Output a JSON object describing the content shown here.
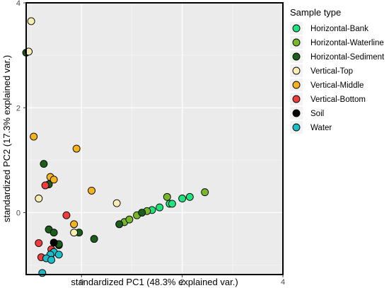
{
  "chart_data": {
    "type": "scatter",
    "title": "",
    "xlabel": "standardized PC1 (48.3% explained var.)",
    "ylabel": "standardized PC2 (17.3% explained var.)",
    "xlim": [
      -1.1,
      4.0
    ],
    "ylim": [
      -1.18,
      4.0
    ],
    "xticks": [
      "0",
      "2",
      "4"
    ],
    "yticks": [
      "0",
      "2",
      "4"
    ],
    "grid": true,
    "legend": {
      "title": "Sample type",
      "placement": "right"
    },
    "series": [
      {
        "name": "Horizontal-Bank",
        "color": "#1fe37f",
        "points": [
          [
            1.4,
            0.05
          ],
          [
            1.55,
            0.1
          ],
          [
            1.75,
            0.17
          ],
          [
            1.8,
            0.17
          ],
          [
            2.0,
            0.27
          ],
          [
            2.15,
            0.3
          ]
        ]
      },
      {
        "name": "Horizontal-Waterline",
        "color": "#77b82a",
        "points": [
          [
            0.85,
            -0.18
          ],
          [
            0.95,
            -0.13
          ],
          [
            1.1,
            -0.05
          ],
          [
            1.3,
            0.03
          ],
          [
            1.7,
            0.3
          ],
          [
            2.45,
            0.39
          ]
        ]
      },
      {
        "name": "Horizontal-Sediment",
        "color": "#1b5e1b",
        "points": [
          [
            -1.1,
            3.05
          ],
          [
            -0.75,
            0.93
          ],
          [
            -0.65,
            0.54
          ],
          [
            -0.65,
            -0.32
          ],
          [
            -0.55,
            -0.38
          ],
          [
            -0.45,
            -0.62
          ],
          [
            0.25,
            -0.5
          ],
          [
            0.75,
            -0.22
          ],
          [
            1.2,
            0.0
          ],
          [
            -0.45,
            -0.6
          ],
          [
            -0.05,
            -0.38
          ]
        ]
      },
      {
        "name": "Vertical-Top",
        "color": "#f7edb2",
        "points": [
          [
            -1.0,
            3.65
          ],
          [
            -1.05,
            3.07
          ],
          [
            -0.85,
            0.27
          ],
          [
            -0.15,
            -0.38
          ],
          [
            0.7,
            0.18
          ]
        ]
      },
      {
        "name": "Vertical-Middle",
        "color": "#f3b31c",
        "points": [
          [
            -0.95,
            1.45
          ],
          [
            -0.1,
            1.22
          ],
          [
            -0.62,
            0.68
          ],
          [
            -0.55,
            0.63
          ],
          [
            0.2,
            0.42
          ],
          [
            -0.15,
            -0.22
          ]
        ]
      },
      {
        "name": "Vertical-Bottom",
        "color": "#ef3d3d",
        "points": [
          [
            -0.72,
            0.52
          ],
          [
            -0.3,
            -0.05
          ],
          [
            -0.85,
            -0.58
          ],
          [
            -0.6,
            -0.7
          ],
          [
            -0.8,
            -0.85
          ],
          [
            -0.62,
            -0.85
          ]
        ]
      },
      {
        "name": "Soil",
        "color": "#000000",
        "points": [
          [
            -0.55,
            -0.57
          ]
        ]
      },
      {
        "name": "Water",
        "color": "#1bbdc8",
        "points": [
          [
            -0.55,
            -0.75
          ],
          [
            -0.62,
            -0.8
          ],
          [
            -0.45,
            -0.8
          ],
          [
            -0.7,
            -0.87
          ],
          [
            -0.6,
            -0.9
          ],
          [
            -0.78,
            -1.15
          ]
        ]
      }
    ]
  }
}
